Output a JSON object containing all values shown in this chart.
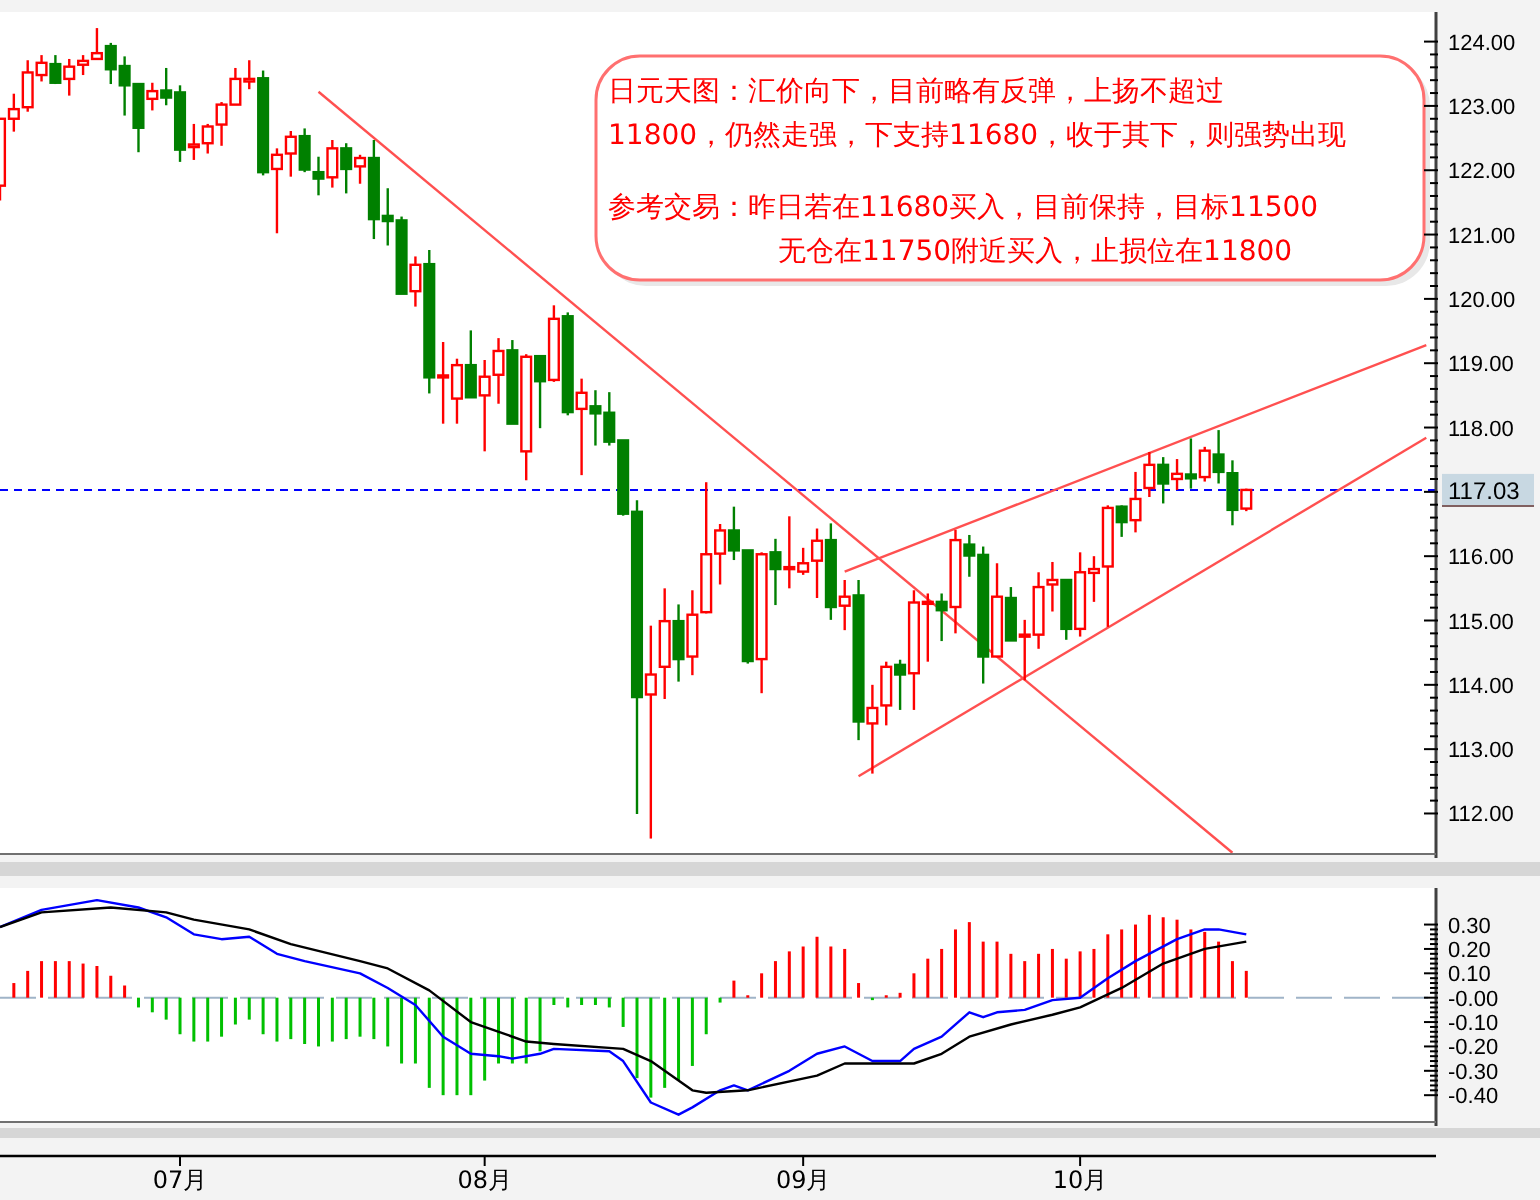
{
  "chart_data": [
    {
      "type": "candlestick",
      "categories": [
        null,
        null,
        null,
        null,
        null,
        null,
        null,
        null,
        null,
        null,
        null,
        null,
        null,
        null,
        null,
        null,
        null,
        null,
        null,
        null,
        null,
        null,
        null,
        null,
        null,
        null,
        null,
        null,
        null,
        null,
        null,
        null,
        null,
        null,
        null,
        null,
        null,
        null,
        null,
        null,
        null,
        null,
        null,
        null,
        null,
        null,
        null,
        null,
        null,
        null,
        null,
        null,
        null,
        null,
        null,
        null,
        null,
        null,
        null,
        null,
        null,
        null,
        null,
        null,
        null,
        null,
        null,
        null,
        null,
        null,
        null,
        null,
        null,
        null,
        null,
        null,
        null,
        null,
        null,
        null,
        null,
        null,
        null,
        null,
        null,
        null,
        null,
        null,
        null,
        null,
        null,
        null,
        null,
        null,
        null,
        null,
        null,
        null,
        null,
        null,
        null,
        null,
        null,
        null
      ],
      "ohlc": [
        [
          121.76,
          122.8,
          121.53,
          122.8
        ],
        [
          122.8,
          123.19,
          122.6,
          122.95
        ],
        [
          122.98,
          123.71,
          122.91,
          123.52
        ],
        [
          123.48,
          123.79,
          123.38,
          123.67
        ],
        [
          123.65,
          123.79,
          123.34,
          123.36
        ],
        [
          123.42,
          123.73,
          123.16,
          123.61
        ],
        [
          123.64,
          123.79,
          123.48,
          123.7
        ],
        [
          123.73,
          124.21,
          123.73,
          123.82
        ],
        [
          123.93,
          123.98,
          123.34,
          123.57
        ],
        [
          123.62,
          123.77,
          122.85,
          123.32
        ],
        [
          123.34,
          123.34,
          122.28,
          122.66
        ],
        [
          123.11,
          123.36,
          122.93,
          123.23
        ],
        [
          123.24,
          123.59,
          123.01,
          123.13
        ],
        [
          123.21,
          123.32,
          122.13,
          122.32
        ],
        [
          122.36,
          122.72,
          122.16,
          122.4
        ],
        [
          122.42,
          122.72,
          122.26,
          122.68
        ],
        [
          122.71,
          123.06,
          122.38,
          123.02
        ],
        [
          123.02,
          123.59,
          123.02,
          123.42
        ],
        [
          123.38,
          123.71,
          123.26,
          123.42
        ],
        [
          123.43,
          123.55,
          121.92,
          121.97
        ],
        [
          122.02,
          122.34,
          121.02,
          122.24
        ],
        [
          122.26,
          122.61,
          121.9,
          122.52
        ],
        [
          122.53,
          122.65,
          121.97,
          122.01
        ],
        [
          121.97,
          122.21,
          121.61,
          121.87
        ],
        [
          121.89,
          122.47,
          121.73,
          122.34
        ],
        [
          122.34,
          122.42,
          121.64,
          122.02
        ],
        [
          122.06,
          122.24,
          121.79,
          122.19
        ],
        [
          122.19,
          122.47,
          120.93,
          121.24
        ],
        [
          121.29,
          121.72,
          120.83,
          121.21
        ],
        [
          121.22,
          121.28,
          120.08,
          120.08
        ],
        [
          120.12,
          120.66,
          119.88,
          120.53
        ],
        [
          120.54,
          120.76,
          118.53,
          118.78
        ],
        [
          118.78,
          119.33,
          118.06,
          118.81
        ],
        [
          118.45,
          119.07,
          118.06,
          118.97
        ],
        [
          118.97,
          119.51,
          118.47,
          118.47
        ],
        [
          118.5,
          119.05,
          117.63,
          118.79
        ],
        [
          118.82,
          119.39,
          118.37,
          119.19
        ],
        [
          119.2,
          119.36,
          118.06,
          118.06
        ],
        [
          117.63,
          119.14,
          117.18,
          119.1
        ],
        [
          119.11,
          119.11,
          117.99,
          118.72
        ],
        [
          118.74,
          119.9,
          118.71,
          119.69
        ],
        [
          119.73,
          119.79,
          118.19,
          118.24
        ],
        [
          118.29,
          118.76,
          117.26,
          118.54
        ],
        [
          118.33,
          118.58,
          117.72,
          118.22
        ],
        [
          118.23,
          118.55,
          117.72,
          117.78
        ],
        [
          117.8,
          117.8,
          116.63,
          116.66
        ],
        [
          116.69,
          116.87,
          111.99,
          113.81
        ],
        [
          113.85,
          114.92,
          111.61,
          114.16
        ],
        [
          114.28,
          115.5,
          113.78,
          114.99
        ],
        [
          114.99,
          115.25,
          114.05,
          114.4
        ],
        [
          114.44,
          115.47,
          114.15,
          115.09
        ],
        [
          115.13,
          117.15,
          115.11,
          116.03
        ],
        [
          116.04,
          116.5,
          115.56,
          116.4
        ],
        [
          116.4,
          116.77,
          115.94,
          116.09
        ],
        [
          116.09,
          116.09,
          114.33,
          114.37
        ],
        [
          114.4,
          116.06,
          113.87,
          116.03
        ],
        [
          116.06,
          116.27,
          115.24,
          115.8
        ],
        [
          115.81,
          116.62,
          115.5,
          115.83
        ],
        [
          115.76,
          116.13,
          115.71,
          115.89
        ],
        [
          115.93,
          116.43,
          115.35,
          116.24
        ],
        [
          116.25,
          116.51,
          115.01,
          115.21
        ],
        [
          115.23,
          115.63,
          114.85,
          115.37
        ],
        [
          115.39,
          115.63,
          113.14,
          113.43
        ],
        [
          113.4,
          114.0,
          112.62,
          113.64
        ],
        [
          113.68,
          114.36,
          113.37,
          114.28
        ],
        [
          114.31,
          114.39,
          113.61,
          114.16
        ],
        [
          114.18,
          115.47,
          113.61,
          115.28
        ],
        [
          115.27,
          115.42,
          114.36,
          115.29
        ],
        [
          115.29,
          115.42,
          114.68,
          115.16
        ],
        [
          115.21,
          116.41,
          114.8,
          116.25
        ],
        [
          116.18,
          116.33,
          115.68,
          116.01
        ],
        [
          116.02,
          116.15,
          114.02,
          114.44
        ],
        [
          114.44,
          115.89,
          114.44,
          115.37
        ],
        [
          115.35,
          115.52,
          114.69,
          114.69
        ],
        [
          114.75,
          115.01,
          114.07,
          114.78
        ],
        [
          114.78,
          115.75,
          114.56,
          115.52
        ],
        [
          115.56,
          115.91,
          115.14,
          115.63
        ],
        [
          115.63,
          115.63,
          114.7,
          114.87
        ],
        [
          114.87,
          116.06,
          114.75,
          115.75
        ],
        [
          115.74,
          116.0,
          115.29,
          115.8
        ],
        [
          115.84,
          116.79,
          114.9,
          116.75
        ],
        [
          116.77,
          116.79,
          116.3,
          116.53
        ],
        [
          116.56,
          117.31,
          116.37,
          116.89
        ],
        [
          117.06,
          117.62,
          116.92,
          117.42
        ],
        [
          117.42,
          117.54,
          116.82,
          117.13
        ],
        [
          117.2,
          117.51,
          117.03,
          117.28
        ],
        [
          117.27,
          117.83,
          117.05,
          117.21
        ],
        [
          117.23,
          117.7,
          117.16,
          117.64
        ],
        [
          117.58,
          117.96,
          117.13,
          117.31
        ],
        [
          117.29,
          117.49,
          116.48,
          116.72
        ],
        [
          116.74,
          117.05,
          116.7,
          117.03
        ],
        null,
        null,
        null,
        null,
        null,
        null,
        null,
        null,
        null,
        null,
        null,
        null,
        null
      ],
      "ylim": [
        111.37,
        124.46
      ],
      "yticks": [
        {
          "value": 112,
          "label": "112.00"
        },
        {
          "value": 113,
          "label": "113.00"
        },
        {
          "value": 114,
          "label": "114.00"
        },
        {
          "value": 115,
          "label": "115.00"
        },
        {
          "value": 116,
          "label": "116.00"
        },
        {
          "value": 117,
          "label": null
        },
        {
          "value": 118,
          "label": "118.00"
        },
        {
          "value": 119,
          "label": "119.00"
        },
        {
          "value": 120,
          "label": "120.00"
        },
        {
          "value": 121,
          "label": "121.00"
        },
        {
          "value": 122,
          "label": "122.00"
        },
        {
          "value": 123,
          "label": "123.00"
        },
        {
          "value": 124,
          "label": "124.00"
        }
      ],
      "tick_labels": "y",
      "ref_lines": [
        {
          "axis": "y",
          "value": 117.03,
          "label": "117.03",
          "color": "#0000ff",
          "line_style": "dashed"
        }
      ],
      "annotations": [
        "日元天图：汇价向下，目前略有反弹，上扬不超过",
        "11800，仍然走强，下支持11680，收于其下，则强势出现",
        "参考交易：昨日若在11680买入，目前保持，目标11500",
        "无仓在11750附近买入，止损位在11800"
      ],
      "series": [
        {
          "type": "line",
          "color": "#ff5050",
          "values": [
            null,
            null,
            null,
            null,
            null,
            null,
            null,
            null,
            null,
            null,
            null,
            null,
            null,
            null,
            null,
            null,
            null,
            null,
            null,
            null,
            null,
            null,
            null,
            123.22,
            null,
            null,
            null,
            null,
            null,
            null,
            null,
            null,
            null,
            null,
            null,
            null,
            null,
            null,
            null,
            null,
            null,
            null,
            null,
            null,
            null,
            null,
            null,
            null,
            null,
            null,
            null,
            null,
            null,
            null,
            null,
            null,
            null,
            null,
            null,
            null,
            null,
            null,
            null,
            null,
            null,
            null,
            null,
            null,
            null,
            null,
            null,
            null,
            null,
            null,
            null,
            null,
            null,
            null,
            null,
            null,
            null,
            null,
            null,
            null,
            null,
            null,
            null,
            null,
            null,
            111.39,
            null,
            null,
            null,
            null,
            null,
            null,
            null,
            null,
            null,
            null,
            null,
            null,
            null,
            null
          ]
        },
        {
          "type": "line",
          "color": "#ff5050",
          "values": [
            null,
            null,
            null,
            null,
            null,
            null,
            null,
            null,
            null,
            null,
            null,
            null,
            null,
            null,
            null,
            null,
            null,
            null,
            null,
            null,
            null,
            null,
            null,
            null,
            null,
            null,
            null,
            null,
            null,
            null,
            null,
            null,
            null,
            null,
            null,
            null,
            null,
            null,
            null,
            null,
            null,
            null,
            null,
            null,
            null,
            null,
            null,
            null,
            null,
            null,
            null,
            null,
            null,
            null,
            null,
            null,
            null,
            null,
            null,
            null,
            null,
            115.76,
            null,
            null,
            null,
            null,
            null,
            null,
            null,
            null,
            null,
            null,
            null,
            null,
            null,
            null,
            null,
            null,
            null,
            null,
            null,
            null,
            null,
            null,
            null,
            null,
            null,
            null,
            null,
            null,
            null,
            null,
            null,
            null,
            null,
            null,
            null,
            null,
            null,
            null,
            null,
            null,
            null,
            119.28
          ]
        },
        {
          "type": "line",
          "color": "#ff5050",
          "values": [
            null,
            null,
            null,
            null,
            null,
            null,
            null,
            null,
            null,
            null,
            null,
            null,
            null,
            null,
            null,
            null,
            null,
            null,
            null,
            null,
            null,
            null,
            null,
            null,
            null,
            null,
            null,
            null,
            null,
            null,
            null,
            null,
            null,
            null,
            null,
            null,
            null,
            null,
            null,
            null,
            null,
            null,
            null,
            null,
            null,
            null,
            null,
            null,
            null,
            null,
            null,
            null,
            null,
            null,
            null,
            null,
            null,
            null,
            null,
            null,
            null,
            null,
            112.58,
            null,
            null,
            null,
            null,
            null,
            null,
            null,
            null,
            null,
            null,
            null,
            null,
            null,
            null,
            null,
            null,
            null,
            null,
            null,
            null,
            null,
            null,
            null,
            null,
            null,
            null,
            null,
            null,
            null,
            null,
            null,
            null,
            null,
            null,
            null,
            null,
            null,
            null,
            null,
            null,
            117.84
          ]
        }
      ]
    },
    {
      "type": "bar",
      "categories": [
        null,
        null,
        null,
        null,
        null,
        null,
        null,
        null,
        null,
        null,
        null,
        null,
        null,
        "07月",
        null,
        null,
        null,
        null,
        null,
        null,
        null,
        null,
        null,
        null,
        null,
        null,
        null,
        null,
        null,
        null,
        null,
        null,
        null,
        null,
        null,
        "08月",
        null,
        null,
        null,
        null,
        null,
        null,
        null,
        null,
        null,
        null,
        null,
        null,
        null,
        null,
        null,
        null,
        null,
        null,
        null,
        null,
        null,
        null,
        "09月",
        null,
        null,
        null,
        null,
        null,
        null,
        null,
        null,
        null,
        null,
        null,
        null,
        null,
        null,
        null,
        null,
        null,
        null,
        null,
        "10月",
        null,
        null,
        null,
        null,
        null,
        null,
        null,
        null,
        null,
        null,
        null,
        null,
        null,
        null,
        null,
        null,
        null,
        null,
        null,
        null,
        null,
        null,
        null,
        null,
        null
      ],
      "ylim": [
        -0.51,
        0.45
      ],
      "yticks": [
        {
          "value": 0.3,
          "label": "0.30"
        },
        {
          "value": 0.2,
          "label": "0.20"
        },
        {
          "value": 0.1,
          "label": "0.10"
        },
        {
          "value": 0,
          "label": "-0.00"
        },
        {
          "value": -0.1,
          "label": "-0.10"
        },
        {
          "value": -0.2,
          "label": "-0.20"
        },
        {
          "value": -0.3,
          "label": "-0.30"
        },
        {
          "value": -0.4,
          "label": "-0.40"
        }
      ],
      "series": [
        {
          "values": [
            null,
            0.06,
            0.11,
            0.15,
            0.15,
            0.15,
            0.14,
            0.13,
            0.09,
            0.05,
            -0.04,
            -0.06,
            -0.09,
            -0.15,
            -0.18,
            -0.18,
            -0.16,
            -0.11,
            -0.09,
            -0.15,
            -0.18,
            -0.17,
            -0.19,
            -0.2,
            -0.18,
            -0.17,
            -0.16,
            -0.17,
            -0.2,
            -0.27,
            -0.27,
            -0.37,
            -0.4,
            -0.4,
            -0.4,
            -0.34,
            -0.27,
            -0.27,
            -0.27,
            -0.22,
            -0.03,
            -0.04,
            -0.03,
            -0.03,
            -0.04,
            -0.12,
            -0.33,
            -0.41,
            -0.37,
            -0.34,
            -0.28,
            -0.15,
            -0.02,
            0.07,
            0.01,
            0.1,
            0.15,
            0.19,
            0.21,
            0.25,
            0.21,
            0.2,
            0.06,
            -0.01,
            0.01,
            0.02,
            0.1,
            0.16,
            0.2,
            0.28,
            0.31,
            0.23,
            0.23,
            0.18,
            0.15,
            0.18,
            0.2,
            0.16,
            0.19,
            0.2,
            0.26,
            0.28,
            0.3,
            0.34,
            0.33,
            0.32,
            0.28,
            0.27,
            0.23,
            0.15,
            0.11,
            null,
            null,
            null,
            null,
            null,
            null,
            null,
            null,
            null,
            null,
            null,
            null,
            null
          ],
          "colors": [
            null,
            "#ff0000",
            "#ff0000",
            "#ff0000",
            "#ff0000",
            "#ff0000",
            "#ff0000",
            "#ff0000",
            "#ff0000",
            "#ff0000",
            "#00c000",
            "#00c000",
            "#00c000",
            "#00c000",
            "#00c000",
            "#00c000",
            "#00c000",
            "#00c000",
            "#00c000",
            "#00c000",
            "#00c000",
            "#00c000",
            "#00c000",
            "#00c000",
            "#00c000",
            "#00c000",
            "#00c000",
            "#00c000",
            "#00c000",
            "#00c000",
            "#00c000",
            "#00c000",
            "#00c000",
            "#00c000",
            "#00c000",
            "#00c000",
            "#00c000",
            "#00c000",
            "#00c000",
            "#00c000",
            "#00c000",
            "#00c000",
            "#00c000",
            "#00c000",
            "#00c000",
            "#00c000",
            "#00c000",
            "#00c000",
            "#00c000",
            "#00c000",
            "#00c000",
            "#00c000",
            "#00c000",
            "#ff0000",
            "#ff0000",
            "#ff0000",
            "#ff0000",
            "#ff0000",
            "#ff0000",
            "#ff0000",
            "#ff0000",
            "#ff0000",
            "#ff0000",
            "#00c000",
            "#ff0000",
            "#ff0000",
            "#ff0000",
            "#ff0000",
            "#ff0000",
            "#ff0000",
            "#ff0000",
            "#ff0000",
            "#ff0000",
            "#ff0000",
            "#ff0000",
            "#ff0000",
            "#ff0000",
            "#ff0000",
            "#ff0000",
            "#ff0000",
            "#ff0000",
            "#ff0000",
            "#ff0000",
            "#ff0000",
            "#ff0000",
            "#ff0000",
            "#ff0000",
            "#ff0000",
            "#ff0000",
            "#ff0000",
            "#ff0000",
            null,
            null,
            null,
            null,
            null,
            null,
            null,
            null,
            null,
            null,
            null,
            null,
            null
          ]
        },
        {
          "type": "line",
          "color": "#0000ff",
          "values": [
            0.29,
            null,
            null,
            0.36,
            null,
            null,
            null,
            0.4,
            null,
            null,
            0.37,
            null,
            0.33,
            null,
            0.26,
            null,
            0.24,
            null,
            0.25,
            null,
            0.18,
            null,
            0.15,
            null,
            null,
            null,
            0.1,
            null,
            0.04,
            null,
            -0.03,
            null,
            -0.16,
            null,
            -0.23,
            null,
            -0.24,
            -0.25,
            null,
            -0.23,
            -0.21,
            null,
            null,
            null,
            -0.22,
            -0.26,
            null,
            -0.43,
            null,
            -0.48,
            -0.45,
            null,
            -0.38,
            -0.36,
            -0.38,
            null,
            null,
            -0.3,
            null,
            -0.23,
            null,
            -0.2,
            null,
            -0.26,
            null,
            -0.26,
            -0.21,
            null,
            -0.16,
            null,
            -0.06,
            -0.08,
            -0.06,
            null,
            -0.05,
            null,
            -0.01,
            null,
            0.0,
            null,
            0.08,
            null,
            0.15,
            null,
            null,
            0.24,
            null,
            0.28,
            0.28,
            null,
            0.26,
            null,
            null,
            null,
            null,
            null,
            null,
            null,
            null,
            null,
            null,
            null,
            null,
            null
          ]
        },
        {
          "type": "line",
          "color": "#000000",
          "values": [
            0.29,
            null,
            null,
            0.35,
            null,
            null,
            null,
            null,
            0.37,
            null,
            null,
            null,
            0.35,
            null,
            0.32,
            null,
            null,
            null,
            0.28,
            null,
            null,
            0.22,
            null,
            null,
            null,
            null,
            0.15,
            null,
            0.12,
            null,
            null,
            0.03,
            null,
            null,
            -0.1,
            null,
            null,
            null,
            -0.18,
            null,
            -0.19,
            null,
            null,
            null,
            null,
            -0.21,
            null,
            -0.26,
            null,
            null,
            -0.38,
            -0.39,
            null,
            null,
            -0.38,
            null,
            null,
            null,
            null,
            -0.32,
            null,
            -0.27,
            null,
            null,
            null,
            null,
            -0.27,
            null,
            -0.23,
            null,
            -0.16,
            null,
            null,
            -0.11,
            null,
            null,
            -0.07,
            null,
            -0.04,
            null,
            null,
            0.04,
            null,
            null,
            0.14,
            null,
            null,
            0.2,
            null,
            null,
            0.23,
            null,
            null,
            null,
            null,
            null,
            null,
            null,
            null,
            null,
            null,
            null,
            null,
            null
          ]
        }
      ]
    }
  ]
}
